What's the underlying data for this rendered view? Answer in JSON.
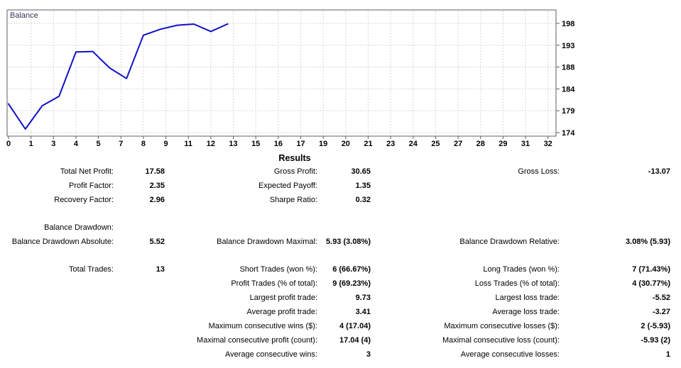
{
  "chart": {
    "label": "Balance",
    "line_color": "#1010c8",
    "grid_color": "#d6d6d6",
    "border_color": "#5f5f5f",
    "tick_text_color": "#000000",
    "label_color": "#34345a"
  },
  "chart_data": {
    "type": "line",
    "title": "Balance",
    "x": [
      0,
      1,
      2,
      3,
      4,
      5,
      6,
      7,
      8,
      9,
      10,
      11,
      12,
      13
    ],
    "series": [
      {
        "name": "Balance",
        "values": [
          180.3,
          174.78,
          179.9,
          182.0,
          191.73,
          191.82,
          188.2,
          185.89,
          195.39,
          196.7,
          197.6,
          197.85,
          196.23,
          197.88
        ]
      }
    ],
    "x_axis_tick_labels": [
      "0",
      "1",
      "3",
      "4",
      "5",
      "7",
      "8",
      "9",
      "11",
      "12",
      "13",
      "15",
      "16",
      "17",
      "19",
      "20",
      "21",
      "23",
      "24",
      "25",
      "27",
      "28",
      "29",
      "31",
      "32"
    ],
    "y_axis_tick_labels": [
      198,
      193,
      188,
      184,
      179,
      174
    ],
    "xlim": [
      0,
      32
    ],
    "ylim": [
      173.2,
      201.1
    ],
    "grid": true,
    "legend_position": "top-left-inside"
  },
  "results": {
    "title": "Results",
    "rows": [
      {
        "a_label": "Total Net Profit:",
        "a_value": "17.58",
        "b_label": "Gross Profit:",
        "b_value": "30.65",
        "c_label": "Gross Loss:",
        "c_value": "-13.07",
        "spacer": false
      },
      {
        "a_label": "Profit Factor:",
        "a_value": "2.35",
        "b_label": "Expected Payoff:",
        "b_value": "1.35",
        "c_label": "",
        "c_value": "",
        "spacer": false
      },
      {
        "a_label": "Recovery Factor:",
        "a_value": "2.96",
        "b_label": "Sharpe Ratio:",
        "b_value": "0.32",
        "c_label": "",
        "c_value": "",
        "spacer": false
      },
      {
        "a_label": "Balance Drawdown:",
        "a_value": "",
        "b_label": "",
        "b_value": "",
        "c_label": "",
        "c_value": "",
        "spacer": true
      },
      {
        "a_label": "Balance Drawdown Absolute:",
        "a_value": "5.52",
        "b_label": "Balance Drawdown Maximal:",
        "b_value": "5.93 (3.08%)",
        "c_label": "Balance Drawdown Relative:",
        "c_value": "3.08% (5.93)",
        "spacer": false
      },
      {
        "a_label": "Total Trades:",
        "a_value": "13",
        "b_label": "Short Trades (won %):",
        "b_value": "6 (66.67%)",
        "c_label": "Long Trades (won %):",
        "c_value": "7 (71.43%)",
        "spacer": true
      },
      {
        "a_label": "",
        "a_value": "",
        "b_label": "Profit Trades (% of total):",
        "b_value": "9 (69.23%)",
        "c_label": "Loss Trades (% of total):",
        "c_value": "4 (30.77%)",
        "spacer": false
      },
      {
        "a_label": "",
        "a_value": "",
        "b_label": "Largest profit trade:",
        "b_value": "9.73",
        "c_label": "Largest loss trade:",
        "c_value": "-5.52",
        "spacer": false
      },
      {
        "a_label": "",
        "a_value": "",
        "b_label": "Average profit trade:",
        "b_value": "3.41",
        "c_label": "Average loss trade:",
        "c_value": "-3.27",
        "spacer": false
      },
      {
        "a_label": "",
        "a_value": "",
        "b_label": "Maximum consecutive wins ($):",
        "b_value": "4 (17.04)",
        "c_label": "Maximum consecutive losses ($):",
        "c_value": "2 (-5.93)",
        "spacer": false
      },
      {
        "a_label": "",
        "a_value": "",
        "b_label": "Maximal consecutive profit (count):",
        "b_value": "17.04 (4)",
        "c_label": "Maximal consecutive loss (count):",
        "c_value": "-5.93 (2)",
        "spacer": false
      },
      {
        "a_label": "",
        "a_value": "",
        "b_label": "Average consecutive wins:",
        "b_value": "3",
        "c_label": "Average consecutive losses:",
        "c_value": "1",
        "spacer": false
      }
    ]
  }
}
